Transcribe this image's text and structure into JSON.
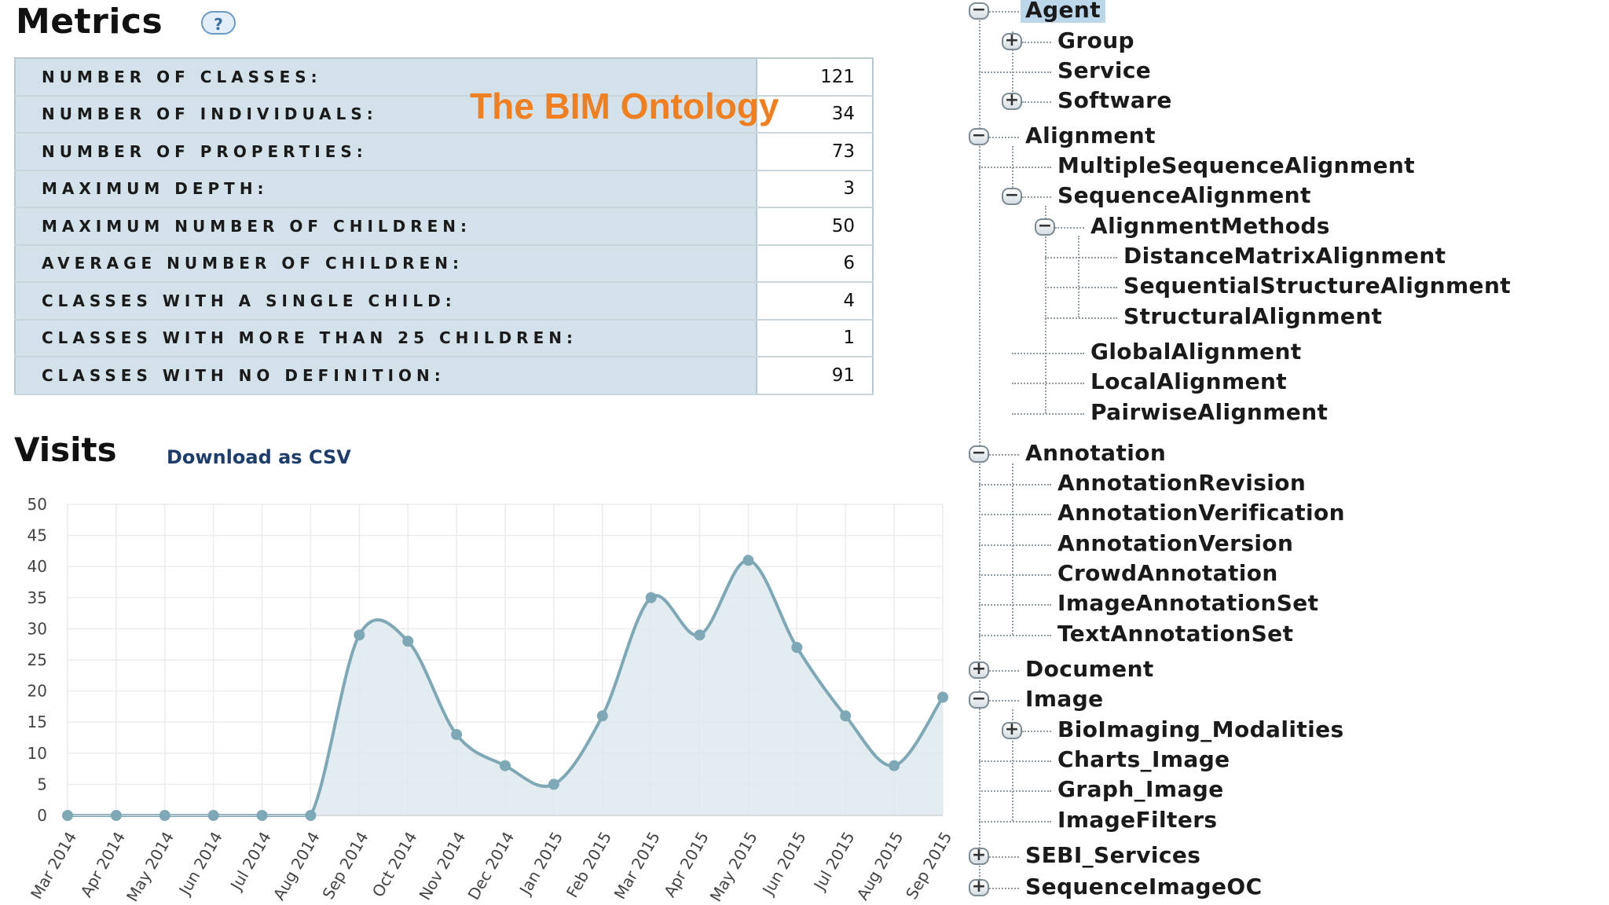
{
  "metrics": {
    "title": "Metrics",
    "help": "?",
    "rows": [
      {
        "label": "NUMBER OF CLASSES:",
        "value": "121"
      },
      {
        "label": "NUMBER OF INDIVIDUALS:",
        "value": "34"
      },
      {
        "label": "NUMBER OF PROPERTIES:",
        "value": "73"
      },
      {
        "label": "MAXIMUM DEPTH:",
        "value": "3"
      },
      {
        "label": "MAXIMUM NUMBER OF CHILDREN:",
        "value": "50"
      },
      {
        "label": "AVERAGE NUMBER OF CHILDREN:",
        "value": "6"
      },
      {
        "label": "CLASSES WITH A SINGLE CHILD:",
        "value": "4"
      },
      {
        "label": "CLASSES WITH MORE THAN 25 CHILDREN:",
        "value": "1"
      },
      {
        "label": "CLASSES WITH NO DEFINITION:",
        "value": "91"
      }
    ]
  },
  "overlay_title": "The BIM Ontology",
  "visits": {
    "title": "Visits",
    "download_label": "Download as CSV"
  },
  "chart_data": {
    "type": "area",
    "categories": [
      "Mar 2014",
      "Apr 2014",
      "May 2014",
      "Jun 2014",
      "Jul 2014",
      "Aug 2014",
      "Sep 2014",
      "Oct 2014",
      "Nov 2014",
      "Dec 2014",
      "Jan 2015",
      "Feb 2015",
      "Mar 2015",
      "Apr 2015",
      "May 2015",
      "Jun 2015",
      "Jul 2015",
      "Aug 2015",
      "Sep 2015"
    ],
    "values": [
      0,
      0,
      0,
      0,
      0,
      0,
      29,
      28,
      13,
      8,
      5,
      16,
      35,
      29,
      41,
      27,
      16,
      8,
      19
    ],
    "yticks": [
      0,
      5,
      10,
      15,
      20,
      25,
      30,
      35,
      40,
      45,
      50
    ],
    "ylim": [
      0,
      50
    ],
    "grid": true,
    "line_color": "#7fa8b6",
    "fill_color": "#dde9ef",
    "point_color": "#7fa8b6"
  },
  "tree": {
    "nodes": [
      {
        "label": "Agent",
        "toggle": "minus",
        "selected": true
      },
      {
        "label": "Group",
        "toggle": "plus"
      },
      {
        "label": "Service"
      },
      {
        "label": "Software",
        "toggle": "plus"
      },
      {
        "label": "Alignment",
        "toggle": "minus"
      },
      {
        "label": "MultipleSequenceAlignment"
      },
      {
        "label": "SequenceAlignment",
        "toggle": "minus"
      },
      {
        "label": "AlignmentMethods",
        "toggle": "minus"
      },
      {
        "label": "DistanceMatrixAlignment"
      },
      {
        "label": "SequentialStructureAlignment"
      },
      {
        "label": "StructuralAlignment"
      },
      {
        "label": "GlobalAlignment"
      },
      {
        "label": "LocalAlignment"
      },
      {
        "label": "PairwiseAlignment"
      },
      {
        "label": "Annotation",
        "toggle": "minus"
      },
      {
        "label": "AnnotationRevision"
      },
      {
        "label": "AnnotationVerification"
      },
      {
        "label": "AnnotationVersion"
      },
      {
        "label": "CrowdAnnotation"
      },
      {
        "label": "ImageAnnotationSet"
      },
      {
        "label": "TextAnnotationSet"
      },
      {
        "label": "Document",
        "toggle": "plus"
      },
      {
        "label": "Image",
        "toggle": "minus"
      },
      {
        "label": "BioImaging_Modalities",
        "toggle": "plus"
      },
      {
        "label": "Charts_Image"
      },
      {
        "label": "Graph_Image"
      },
      {
        "label": "ImageFilters"
      },
      {
        "label": "SEBI_Services",
        "toggle": "plus"
      },
      {
        "label": "SequenceImageOC",
        "toggle": "plus"
      }
    ]
  }
}
